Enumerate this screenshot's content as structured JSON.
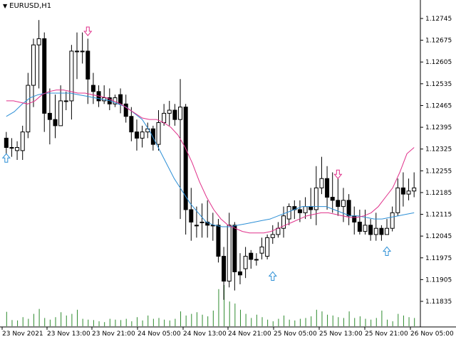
{
  "window": {
    "symbol_label": "EURUSD,H1",
    "menu_icon": "triangle-down-icon"
  },
  "colors": {
    "background": "#ffffff",
    "bull_fill": "#ffffff",
    "bear_fill": "#000000",
    "candle_outline": "#000000",
    "ma_fast": "#e0308a",
    "ma_slow": "#2c8fd6",
    "volume": "#2e8b2e",
    "arrow_sell": "#e0308a",
    "arrow_buy": "#2c8fd6",
    "axis": "#000000"
  },
  "chart_data": {
    "type": "candlestick",
    "symbol": "EURUSD",
    "timeframe": "H1",
    "y_ticks": [
      "1.12745",
      "1.12675",
      "1.12605",
      "1.12535",
      "1.12465",
      "1.12395",
      "1.12325",
      "1.12255",
      "1.12185",
      "1.12115",
      "1.12045",
      "1.11975",
      "1.11905",
      "1.11835"
    ],
    "x_ticks": [
      "23 Nov 2021",
      "23 Nov 13:00",
      "23 Nov 21:00",
      "24 Nov 05:00",
      "24 Nov 13:00",
      "24 Nov 21:00",
      "25 Nov 05:00",
      "25 Nov 13:00",
      "25 Nov 21:00",
      "26 Nov 05:00"
    ],
    "ylim": [
      1.11835,
      1.12745
    ],
    "candles": [
      [
        1.1236,
        1.1233,
        1.1238,
        1.123
      ],
      [
        1.1233,
        1.1233,
        1.1236,
        1.123
      ],
      [
        1.1232,
        1.1233,
        1.1235,
        1.1229
      ],
      [
        1.1232,
        1.1238,
        1.124,
        1.1229
      ],
      [
        1.1238,
        1.1253,
        1.1257,
        1.1236
      ],
      [
        1.1253,
        1.1266,
        1.1268,
        1.1246
      ],
      [
        1.1266,
        1.1268,
        1.1274,
        1.1252
      ],
      [
        1.1268,
        1.1244,
        1.127,
        1.1238
      ],
      [
        1.1244,
        1.1242,
        1.1252,
        1.1234
      ],
      [
        1.1242,
        1.124,
        1.125,
        1.1236
      ],
      [
        1.124,
        1.1248,
        1.1253,
        1.1242
      ],
      [
        1.1248,
        1.1248,
        1.1251,
        1.1245
      ],
      [
        1.1248,
        1.1264,
        1.1266,
        1.1242
      ],
      [
        1.1264,
        1.1264,
        1.127,
        1.1255
      ],
      [
        1.1264,
        1.1264,
        1.127,
        1.126
      ],
      [
        1.1264,
        1.1255,
        1.1268,
        1.1247
      ],
      [
        1.1253,
        1.1251,
        1.1257,
        1.1247
      ],
      [
        1.1251,
        1.1248,
        1.1253,
        1.1246
      ],
      [
        1.1248,
        1.1249,
        1.1253,
        1.1247
      ],
      [
        1.1249,
        1.1247,
        1.1252,
        1.1245
      ],
      [
        1.1247,
        1.1249,
        1.125,
        1.1246
      ],
      [
        1.125,
        1.1247,
        1.1252,
        1.1244
      ],
      [
        1.1247,
        1.1243,
        1.125,
        1.1241
      ],
      [
        1.1243,
        1.1238,
        1.1246,
        1.1235
      ],
      [
        1.1238,
        1.1236,
        1.1242,
        1.1232
      ],
      [
        1.1236,
        1.1238,
        1.124,
        1.1233
      ],
      [
        1.1238,
        1.1239,
        1.1241,
        1.1236
      ],
      [
        1.1239,
        1.1234,
        1.124,
        1.1232
      ],
      [
        1.1234,
        1.1241,
        1.1245,
        1.1232
      ],
      [
        1.1241,
        1.1244,
        1.1247,
        1.124
      ],
      [
        1.1244,
        1.1245,
        1.1248,
        1.124
      ],
      [
        1.1245,
        1.1242,
        1.1247,
        1.124
      ],
      [
        1.1242,
        1.1246,
        1.1255,
        1.121
      ],
      [
        1.1246,
        1.1213,
        1.1247,
        1.1205
      ],
      [
        1.1213,
        1.1209,
        1.122,
        1.1203
      ],
      [
        1.1208,
        1.1208,
        1.1214,
        1.1204
      ],
      [
        1.1209,
        1.1209,
        1.1215,
        1.1204
      ],
      [
        1.1209,
        1.1208,
        1.1216,
        1.1204
      ],
      [
        1.1208,
        1.1208,
        1.1212,
        1.1203
      ],
      [
        1.1208,
        1.1198,
        1.121,
        1.1196
      ],
      [
        1.1198,
        1.119,
        1.1201,
        1.1184
      ],
      [
        1.119,
        1.1208,
        1.1212,
        1.1188
      ],
      [
        1.1208,
        1.1193,
        1.1209,
        1.1187
      ],
      [
        1.1193,
        1.1192,
        1.1199,
        1.1189
      ],
      [
        1.1194,
        1.1198,
        1.1201,
        1.1191
      ],
      [
        1.1199,
        1.1197,
        1.12,
        1.1194
      ],
      [
        1.1197,
        1.1197,
        1.1199,
        1.1195
      ],
      [
        1.1199,
        1.1201,
        1.1204,
        1.1197
      ],
      [
        1.1198,
        1.1204,
        1.1205,
        1.1197
      ],
      [
        1.1204,
        1.1205,
        1.1208,
        1.1202
      ],
      [
        1.1205,
        1.1207,
        1.1209,
        1.1204
      ],
      [
        1.1207,
        1.1211,
        1.1214,
        1.1204
      ],
      [
        1.121,
        1.1214,
        1.1215,
        1.1208
      ],
      [
        1.1214,
        1.1213,
        1.1216,
        1.121
      ],
      [
        1.1213,
        1.1212,
        1.1216,
        1.1209
      ],
      [
        1.1212,
        1.1214,
        1.1217,
        1.121
      ],
      [
        1.1214,
        1.1213,
        1.122,
        1.121
      ],
      [
        1.1213,
        1.122,
        1.1227,
        1.1208
      ],
      [
        1.122,
        1.1223,
        1.123,
        1.1218
      ],
      [
        1.1223,
        1.1217,
        1.1227,
        1.1213
      ],
      [
        1.1217,
        1.1216,
        1.1225,
        1.1212
      ],
      [
        1.1216,
        1.1214,
        1.1223,
        1.1211
      ],
      [
        1.1214,
        1.1216,
        1.122,
        1.1209
      ],
      [
        1.1216,
        1.1211,
        1.1218,
        1.1208
      ],
      [
        1.1211,
        1.1209,
        1.1214,
        1.1205
      ],
      [
        1.1209,
        1.1206,
        1.1213,
        1.1205
      ],
      [
        1.1206,
        1.1208,
        1.1213,
        1.1205
      ],
      [
        1.1208,
        1.1205,
        1.121,
        1.1203
      ],
      [
        1.1205,
        1.1207,
        1.1212,
        1.1203
      ],
      [
        1.1207,
        1.1205,
        1.1208,
        1.1203
      ],
      [
        1.1205,
        1.1207,
        1.121,
        1.1205
      ],
      [
        1.1207,
        1.1212,
        1.1214,
        1.1206
      ],
      [
        1.1212,
        1.122,
        1.1223,
        1.1211
      ],
      [
        1.122,
        1.1218,
        1.1225,
        1.1214
      ],
      [
        1.1218,
        1.1219,
        1.1223,
        1.1216
      ],
      [
        1.1219,
        1.122,
        1.1225,
        1.1217
      ]
    ],
    "ma_fast": [
      1.1248,
      1.1248,
      1.12475,
      1.1247,
      1.1248,
      1.125,
      1.1251,
      1.12515,
      1.12515,
      1.1251,
      1.12505,
      1.12505,
      1.125,
      1.12495,
      1.1249,
      1.1248,
      1.1247,
      1.12455,
      1.1244,
      1.12425,
      1.1242,
      1.1242,
      1.1241,
      1.12395,
      1.1237,
      1.1233,
      1.1228,
      1.1222,
      1.1217,
      1.1213,
      1.121,
      1.1208,
      1.1207,
      1.1206,
      1.12055,
      1.12055,
      1.12055,
      1.1206,
      1.1207,
      1.1208,
      1.1209,
      1.121,
      1.1211,
      1.12115,
      1.1212,
      1.1212,
      1.12115,
      1.1211,
      1.12105,
      1.12105,
      1.1211,
      1.1212,
      1.1214,
      1.1217,
      1.122,
      1.1225,
      1.1231,
      1.1233
    ],
    "ma_slow": [
      1.1243,
      1.12445,
      1.1247,
      1.1249,
      1.125,
      1.12505,
      1.12505,
      1.12505,
      1.12505,
      1.125,
      1.12495,
      1.1249,
      1.12485,
      1.1248,
      1.1247,
      1.1246,
      1.1244,
      1.1242,
      1.1238,
      1.1233,
      1.1228,
      1.1223,
      1.1219,
      1.1215,
      1.1212,
      1.1209,
      1.1208,
      1.12075,
      1.12075,
      1.1208,
      1.12085,
      1.1209,
      1.12095,
      1.121,
      1.1211,
      1.1212,
      1.1213,
      1.1214,
      1.1214,
      1.1214,
      1.1214,
      1.1213,
      1.1212,
      1.1211,
      1.1211,
      1.12105,
      1.121,
      1.121,
      1.12105,
      1.1211,
      1.12115,
      1.1212
    ],
    "signals": [
      {
        "type": "buy",
        "index": 0,
        "price": 1.1231
      },
      {
        "type": "sell",
        "index": 15,
        "price": 1.1269
      },
      {
        "type": "sell",
        "index": 61,
        "price": 1.1223
      },
      {
        "type": "buy",
        "index": 49,
        "price": 1.1193
      },
      {
        "type": "buy",
        "index": 70,
        "price": 1.1201
      }
    ],
    "volume": [
      0.35,
      0.15,
      0.14,
      0.22,
      0.18,
      0.3,
      0.42,
      0.2,
      0.16,
      0.22,
      0.34,
      0.26,
      0.3,
      0.4,
      0.18,
      0.16,
      0.15,
      0.12,
      0.1,
      0.18,
      0.16,
      0.15,
      0.18,
      0.12,
      0.22,
      0.14,
      0.26,
      0.18,
      0.2,
      0.16,
      0.14,
      0.18,
      0.36,
      0.26,
      0.3,
      0.34,
      0.28,
      0.24,
      0.38,
      0.9,
      1.0,
      0.6,
      0.55,
      0.4,
      0.3,
      0.2,
      0.28,
      0.22,
      0.16,
      0.12,
      0.18,
      0.26,
      0.16,
      0.14,
      0.18,
      0.2,
      0.24,
      0.4,
      0.36,
      0.28,
      0.26,
      0.22,
      0.2,
      0.36,
      0.2,
      0.24,
      0.18,
      0.16,
      0.2,
      0.38,
      0.16,
      0.12,
      0.3,
      0.26,
      0.22,
      0.2
    ]
  }
}
